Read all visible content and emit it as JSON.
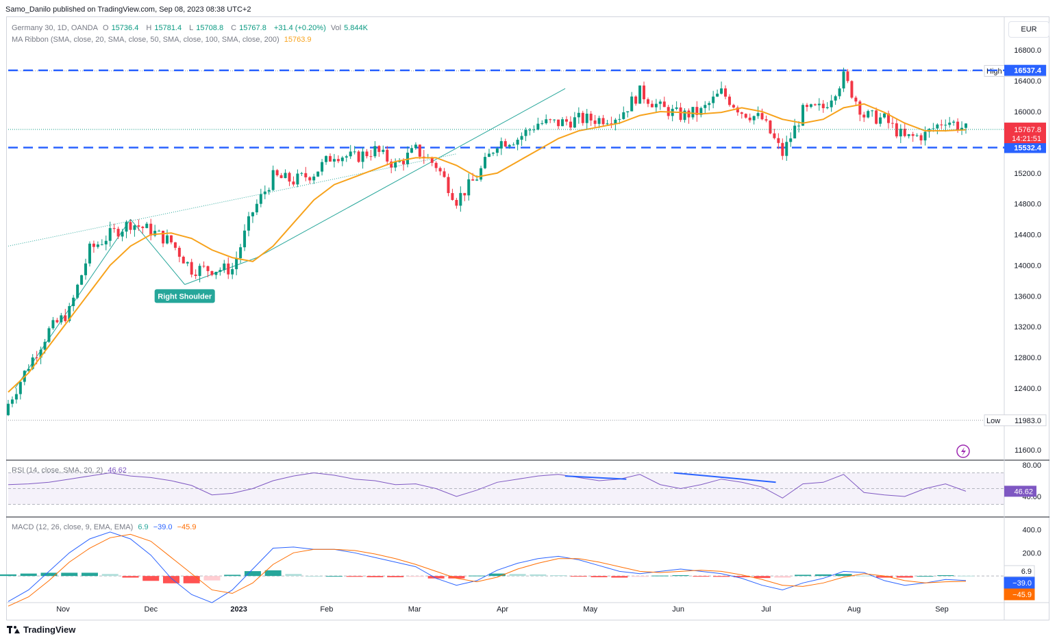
{
  "header": {
    "publisher": "Samo_Danilo published on TradingView.com, Sep 08, 2023 08:38 UTC+2"
  },
  "legend": {
    "symbol": "Germany 30, 1D, OANDA",
    "o_label": "O",
    "o": "15736.4",
    "h_label": "H",
    "h": "15781.4",
    "l_label": "L",
    "l": "15708.8",
    "c_label": "C",
    "c": "15767.8",
    "change": "+31.4 (+0.20%)",
    "vol_label": "Vol",
    "vol": "5.844K",
    "ma_label": "MA Ribbon (SMA, close, 20, SMA, close, 50, SMA, close, 100, SMA, close, 200)",
    "ma_value": "15763.9",
    "rsi_label": "RSI (14, close, SMA, 20, 2)",
    "rsi_value": "46.62",
    "macd_label": "MACD (12, 26, close, 9, EMA, EMA)",
    "macd_hist": "6.9",
    "macd_line": "−39.0",
    "macd_signal": "−45.9"
  },
  "currency_button": "EUR",
  "footer": {
    "brand": "TradingView"
  },
  "colors": {
    "up": "#089981",
    "down": "#f23645",
    "ma": "#f7a21b",
    "resistance": "#2962ff",
    "trend": "#26a69a",
    "rsi": "#7e57c2",
    "macd": "#2962ff",
    "signal": "#ff6d00"
  },
  "chart_data": [
    {
      "type": "candlestick",
      "symbol": "Germany 30",
      "interval": "1D",
      "ylim": [
        11500,
        16900
      ],
      "y_ticks": [
        16800,
        16400,
        16000,
        15600,
        15200,
        14800,
        14400,
        14000,
        13600,
        13200,
        12800,
        12400,
        11600
      ],
      "x_ticks": [
        "Nov",
        "Dec",
        "2023",
        "Feb",
        "Mar",
        "Apr",
        "May",
        "Jun",
        "Jul",
        "Aug",
        "Sep"
      ],
      "last_price": 15767.8,
      "countdown": "14:21:51",
      "high": {
        "label": "High",
        "value": 16530.0
      },
      "low": {
        "label": "Low",
        "value": 11983.0
      },
      "horizontal_lines": [
        {
          "value": 16537.4,
          "label": "16537.4"
        },
        {
          "value": 15532.4,
          "label": "15532.4"
        }
      ],
      "annotation": "Right Shoulder",
      "close_path": {
        "x": [
          "Oct 13",
          "Oct 20",
          "Oct 27",
          "Nov 03",
          "Nov 10",
          "Nov 17",
          "Nov 24",
          "Dec 01",
          "Dec 08",
          "Dec 15",
          "Dec 22",
          "Dec 29",
          "Jan 05",
          "Jan 12",
          "Jan 19",
          "Jan 26",
          "Feb 02",
          "Feb 09",
          "Feb 16",
          "Feb 23",
          "Mar 02",
          "Mar 09",
          "Mar 16",
          "Mar 23",
          "Mar 30",
          "Apr 06",
          "Apr 13",
          "Apr 20",
          "Apr 27",
          "May 04",
          "May 11",
          "May 18",
          "May 25",
          "Jun 01",
          "Jun 08",
          "Jun 15",
          "Jun 22",
          "Jun 29",
          "Jul 06",
          "Jul 13",
          "Jul 20",
          "Jul 27",
          "Aug 03",
          "Aug 10",
          "Aug 17",
          "Aug 24",
          "Aug 31",
          "Sep 07"
        ],
        "close": [
          12200,
          12700,
          13150,
          13400,
          14200,
          14400,
          14550,
          14450,
          14300,
          13950,
          13950,
          13950,
          14700,
          15150,
          15100,
          15200,
          15450,
          15400,
          15500,
          15300,
          15500,
          15300,
          14850,
          15150,
          15600,
          15650,
          15850,
          15850,
          15900,
          15900,
          15950,
          16250,
          16050,
          15950,
          16000,
          16250,
          16000,
          15900,
          15450,
          16000,
          16050,
          16450,
          15950,
          15900,
          15650,
          15700,
          15900,
          15767.8
        ],
        "ma_20": [
          12350,
          12600,
          12950,
          13300,
          13650,
          14000,
          14250,
          14400,
          14420,
          14350,
          14200,
          14100,
          14050,
          14250,
          14550,
          14850,
          15050,
          15150,
          15250,
          15350,
          15400,
          15400,
          15300,
          15150,
          15200,
          15350,
          15500,
          15650,
          15750,
          15800,
          15850,
          15950,
          16000,
          15990,
          15970,
          15990,
          16050,
          16000,
          15900,
          15850,
          15900,
          16050,
          16100,
          15990,
          15850,
          15750,
          15750,
          15764
        ]
      }
    },
    {
      "type": "line",
      "title": "RSI",
      "ylim": [
        20,
        80
      ],
      "y_ticks": [
        80,
        40
      ],
      "band": [
        30,
        70
      ],
      "mid": 50,
      "last": 46.62,
      "values": [
        55,
        56,
        58,
        62,
        66,
        70,
        66,
        64,
        60,
        54,
        42,
        44,
        50,
        60,
        66,
        70,
        67,
        62,
        60,
        55,
        56,
        50,
        40,
        48,
        58,
        62,
        66,
        68,
        64,
        60,
        62,
        68,
        55,
        50,
        55,
        62,
        58,
        52,
        38,
        56,
        58,
        68,
        45,
        42,
        40,
        50,
        56,
        46.62
      ]
    },
    {
      "type": "line",
      "title": "MACD",
      "ylim": [
        -200,
        450
      ],
      "y_ticks": [
        400,
        200
      ],
      "last": {
        "histogram": 6.9,
        "macd": -39.0,
        "signal": -45.9
      },
      "macd": [
        -220,
        -120,
        40,
        200,
        320,
        380,
        320,
        180,
        -20,
        -160,
        -230,
        -120,
        60,
        240,
        250,
        230,
        230,
        200,
        160,
        120,
        80,
        -20,
        -80,
        -40,
        50,
        110,
        150,
        170,
        140,
        90,
        40,
        20,
        40,
        60,
        40,
        20,
        -20,
        -80,
        -120,
        -60,
        -20,
        40,
        30,
        -40,
        -80,
        -60,
        -30,
        -39
      ],
      "signal": [
        -260,
        -180,
        -40,
        120,
        240,
        330,
        360,
        300,
        160,
        20,
        -120,
        -150,
        -60,
        100,
        200,
        230,
        230,
        220,
        190,
        150,
        100,
        40,
        -20,
        -50,
        -10,
        60,
        110,
        150,
        150,
        120,
        80,
        40,
        30,
        40,
        50,
        40,
        10,
        -30,
        -80,
        -90,
        -60,
        -10,
        20,
        0,
        -40,
        -60,
        -50,
        -45.9
      ]
    }
  ]
}
